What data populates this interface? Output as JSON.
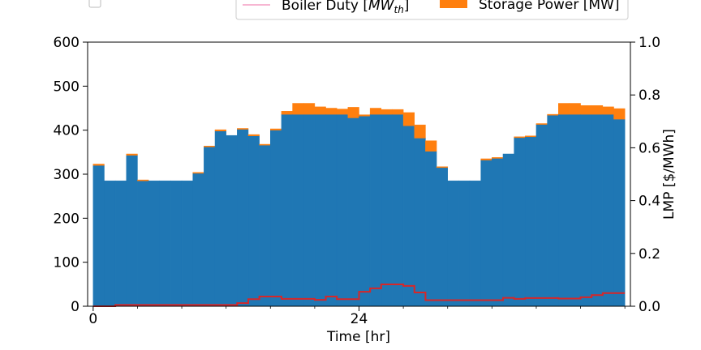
{
  "chart_data": {
    "type": "area",
    "step": "post",
    "xlabel": "Time [hr]",
    "ylabel_right": "LMP [$/MWh]",
    "x_ticks": [
      0,
      24
    ],
    "x_range": [
      -0.5,
      48.5
    ],
    "y_left_ticks": [
      0,
      100,
      200,
      300,
      400,
      500,
      600
    ],
    "y_left_range": [
      0,
      600
    ],
    "y_right_ticks": [
      "0.0",
      "0.2",
      "0.4",
      "0.6",
      "0.8",
      "1.0"
    ],
    "y_right_range": [
      0,
      1.0
    ],
    "legend": {
      "placement": "top",
      "entries": [
        {
          "label": "",
          "kind": "checkbox"
        },
        {
          "label_prefix": "Boiler Duty [",
          "label_main": "MW",
          "label_sub": "th",
          "label_suffix": "]",
          "kind": "line",
          "color": "#f7b6d2"
        },
        {
          "label": "Storage Power [MW]",
          "kind": "patch",
          "color": "#ff7f0e"
        }
      ]
    },
    "series": [
      {
        "name": "",
        "role": "stacked-base",
        "color": "#1f77b4",
        "values": [
          320,
          285,
          285,
          343,
          285,
          285,
          285,
          285,
          285,
          302,
          362,
          398,
          388,
          402,
          387,
          366,
          400,
          436,
          436,
          436,
          436,
          436,
          436,
          428,
          432,
          436,
          436,
          436,
          410,
          382,
          352,
          315,
          285,
          285,
          285,
          332,
          336,
          346,
          383,
          385,
          413,
          434,
          436,
          436,
          436,
          436,
          436,
          425
        ]
      },
      {
        "name": "Storage Power [MW]",
        "role": "stacked-top",
        "color": "#ff7f0e",
        "values": [
          3,
          0,
          0,
          3,
          2,
          0,
          0,
          0,
          0,
          2,
          2,
          3,
          0,
          2,
          3,
          2,
          3,
          7,
          25,
          25,
          17,
          14,
          12,
          24,
          3,
          14,
          11,
          11,
          30,
          30,
          24,
          2,
          0,
          0,
          0,
          3,
          2,
          0,
          2,
          2,
          2,
          2,
          25,
          25,
          20,
          20,
          17,
          24
        ]
      },
      {
        "name": "LMP",
        "role": "right-axis-step-line",
        "color": "#d62728",
        "values": [
          0.0,
          0.0,
          0.005,
          0.005,
          0.005,
          0.005,
          0.005,
          0.005,
          0.005,
          0.005,
          0.005,
          0.005,
          0.005,
          0.012,
          0.027,
          0.037,
          0.037,
          0.028,
          0.028,
          0.028,
          0.024,
          0.037,
          0.027,
          0.027,
          0.055,
          0.068,
          0.083,
          0.083,
          0.077,
          0.052,
          0.023,
          0.023,
          0.023,
          0.023,
          0.023,
          0.023,
          0.023,
          0.032,
          0.028,
          0.031,
          0.031,
          0.031,
          0.029,
          0.029,
          0.034,
          0.042,
          0.05,
          0.05
        ]
      }
    ]
  }
}
